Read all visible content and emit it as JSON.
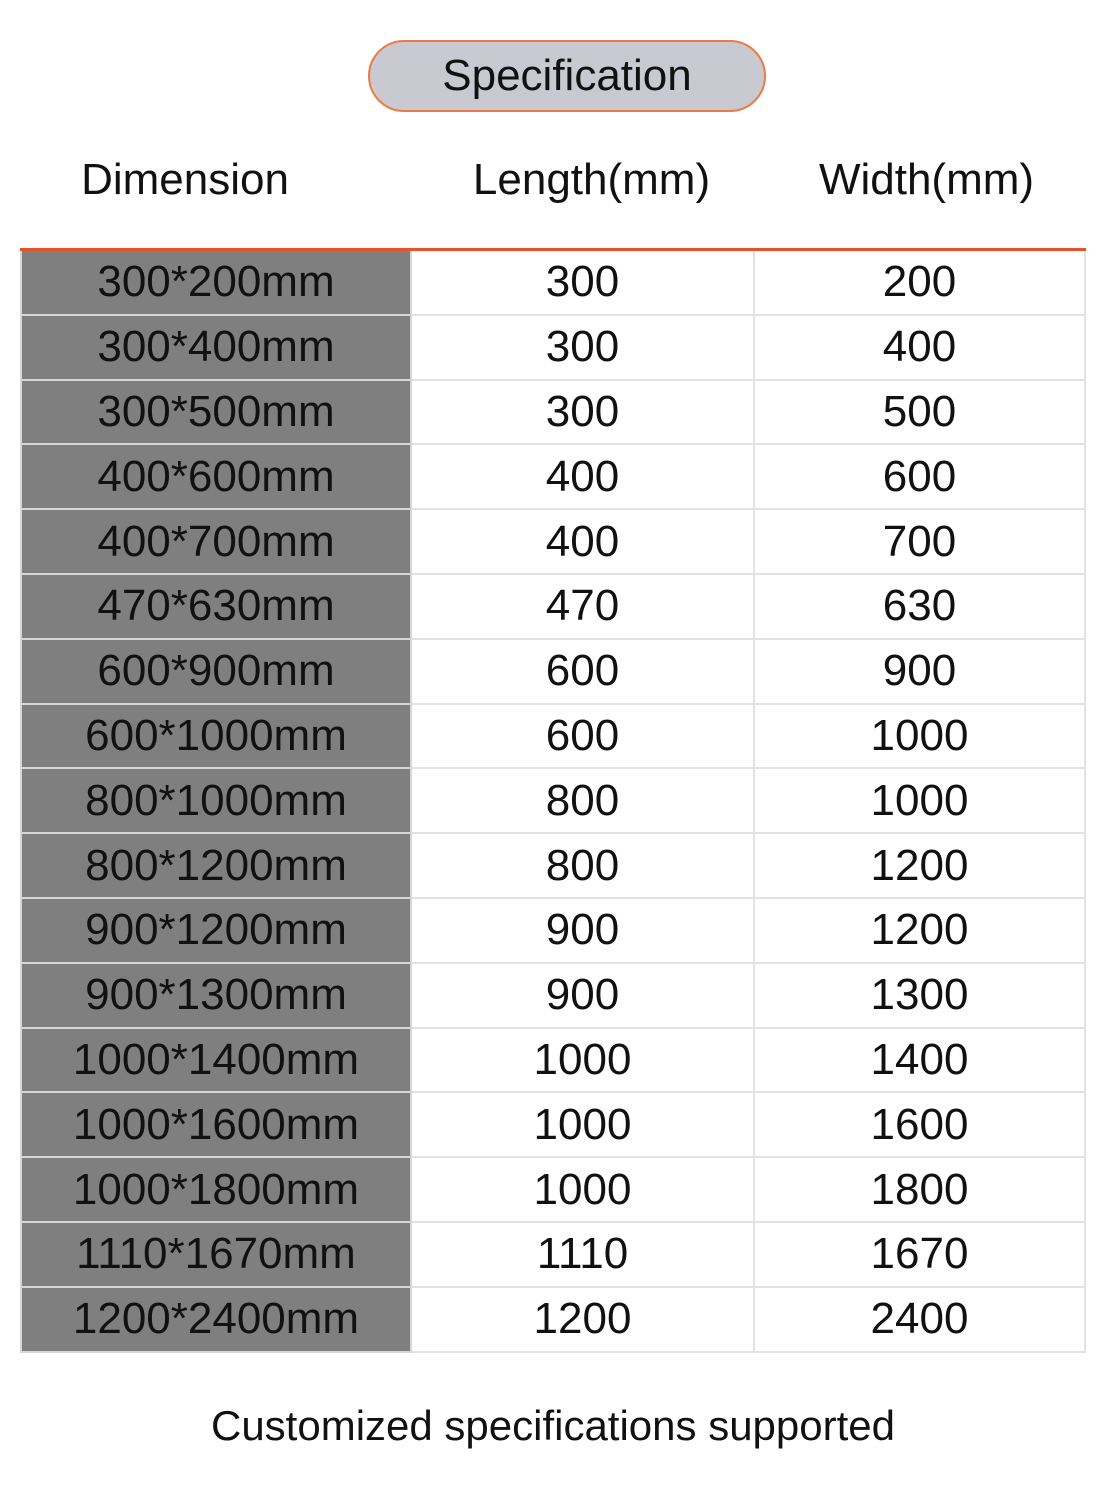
{
  "title": "Specification",
  "headers": [
    "Dimension",
    "Length(mm)",
    "Width(mm)"
  ],
  "rows": [
    [
      "300*200mm",
      "300",
      "200"
    ],
    [
      "300*400mm",
      "300",
      "400"
    ],
    [
      "300*500mm",
      "300",
      "500"
    ],
    [
      "400*600mm",
      "400",
      "600"
    ],
    [
      "400*700mm",
      "400",
      "700"
    ],
    [
      "470*630mm",
      "470",
      "630"
    ],
    [
      "600*900mm",
      "600",
      "900"
    ],
    [
      "600*1000mm",
      "600",
      "1000"
    ],
    [
      "800*1000mm",
      "800",
      "1000"
    ],
    [
      "800*1200mm",
      "800",
      "1200"
    ],
    [
      "900*1200mm",
      "900",
      "1200"
    ],
    [
      "900*1300mm",
      "900",
      "1300"
    ],
    [
      "1000*1400mm",
      "1000",
      "1400"
    ],
    [
      "1000*1600mm",
      "1000",
      "1600"
    ],
    [
      "1000*1800mm",
      "1000",
      "1800"
    ],
    [
      "1110*1670mm",
      "1110",
      "1670"
    ],
    [
      "1200*2400mm",
      "1200",
      "2400"
    ]
  ],
  "footer": "Customized specifications supported",
  "colors": {
    "accent": "#e8502a",
    "dimension_cell": "#7f7f7f",
    "title_pill": "#c8c9d1"
  }
}
